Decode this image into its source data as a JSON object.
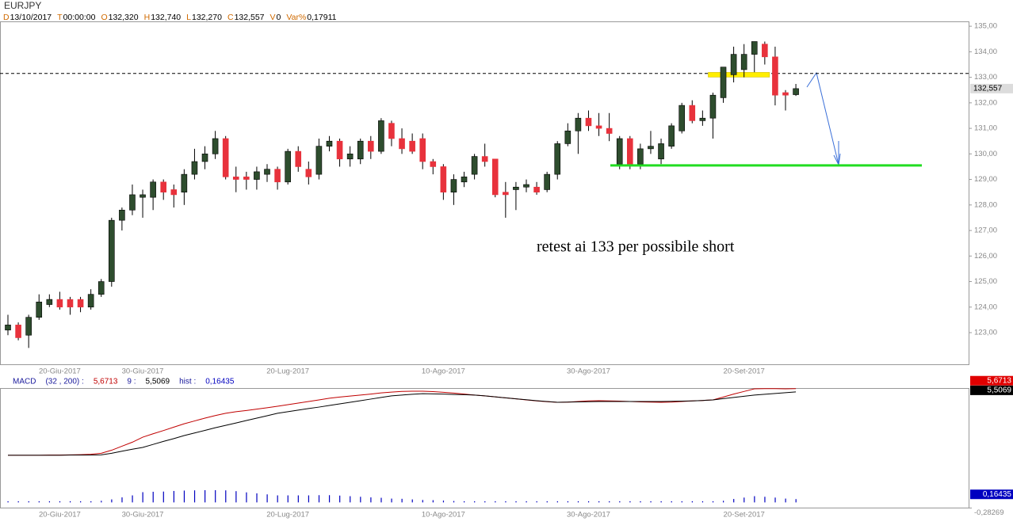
{
  "chart_data": [
    {
      "type": "candlestick",
      "title": "EURJPY",
      "info": [
        {
          "key": "D",
          "value": "13/10/2017"
        },
        {
          "key": "T",
          "value": "00:00:00"
        },
        {
          "key": "O",
          "value": "132,320"
        },
        {
          "key": "H",
          "value": "132,740"
        },
        {
          "key": "L",
          "value": "132,270"
        },
        {
          "key": "C",
          "value": "132,557"
        },
        {
          "key": "V",
          "value": "0"
        },
        {
          "key": "Var%",
          "value": "0,17911"
        }
      ],
      "categories": [
        null,
        null,
        null,
        null,
        null,
        "20-Giu-2017",
        null,
        null,
        null,
        null,
        null,
        null,
        null,
        "30-Giu-2017",
        null,
        null,
        null,
        null,
        null,
        null,
        null,
        null,
        null,
        null,
        null,
        null,
        null,
        "20-Lug-2017",
        null,
        null,
        null,
        null,
        null,
        null,
        null,
        null,
        null,
        null,
        null,
        null,
        null,
        null,
        "10-Ago-2017",
        null,
        null,
        null,
        null,
        null,
        null,
        null,
        null,
        null,
        null,
        null,
        null,
        null,
        "30-Ago-2017",
        null,
        null,
        null,
        null,
        null,
        null,
        null,
        null,
        null,
        null,
        null,
        null,
        null,
        null,
        "20-Set-2017",
        null,
        null,
        null,
        null,
        null
      ],
      "open": [
        123.1,
        123.3,
        122.9,
        123.6,
        124.1,
        124.3,
        124.3,
        124.3,
        124.0,
        124.5,
        125.0,
        127.4,
        127.8,
        128.3,
        128.3,
        128.9,
        128.6,
        128.5,
        129.2,
        129.7,
        130.0,
        130.6,
        129.1,
        129.1,
        129.0,
        129.2,
        129.4,
        128.9,
        130.1,
        129.4,
        129.2,
        130.3,
        130.5,
        129.8,
        129.8,
        130.5,
        130.1,
        131.2,
        130.6,
        130.5,
        130.6,
        129.7,
        129.5,
        128.5,
        128.9,
        129.2,
        129.9,
        129.8,
        128.5,
        128.6,
        128.7,
        128.7,
        128.6,
        129.2,
        130.4,
        130.9,
        131.4,
        131.1,
        131.0,
        129.6,
        130.6,
        129.6,
        130.2,
        129.8,
        130.3,
        130.9,
        131.9,
        131.3,
        131.4,
        132.2,
        133.1,
        133.3,
        133.9,
        134.3,
        133.8,
        132.4,
        132.32
      ],
      "high": [
        123.7,
        123.4,
        123.7,
        124.5,
        124.5,
        124.6,
        124.4,
        124.4,
        124.7,
        125.1,
        127.5,
        127.9,
        128.8,
        128.6,
        129.0,
        129.0,
        128.8,
        129.4,
        130.2,
        130.3,
        130.9,
        130.7,
        129.5,
        129.3,
        129.5,
        129.6,
        129.5,
        130.2,
        130.3,
        129.7,
        130.6,
        130.7,
        130.6,
        130.3,
        130.6,
        130.7,
        131.4,
        131.3,
        131.0,
        130.8,
        130.8,
        129.8,
        129.6,
        129.2,
        129.3,
        130.0,
        130.4,
        129.8,
        128.9,
        128.9,
        129.0,
        128.9,
        129.3,
        130.5,
        131.2,
        131.6,
        131.7,
        131.6,
        131.6,
        130.7,
        130.7,
        130.4,
        130.9,
        130.6,
        131.2,
        132.0,
        132.1,
        131.7,
        132.4,
        133.4,
        134.2,
        134.3,
        134.4,
        134.4,
        134.2,
        132.5,
        132.74
      ],
      "low": [
        122.9,
        122.7,
        122.4,
        123.5,
        124.0,
        123.9,
        123.7,
        123.8,
        123.9,
        124.4,
        124.8,
        127.0,
        127.6,
        127.5,
        127.8,
        128.2,
        127.9,
        128.0,
        129.0,
        129.4,
        129.8,
        129.0,
        128.5,
        128.6,
        128.6,
        128.9,
        128.6,
        128.8,
        129.3,
        128.8,
        129.0,
        130.1,
        129.5,
        129.5,
        129.6,
        129.8,
        130.0,
        130.3,
        130.0,
        130.0,
        129.4,
        129.2,
        128.2,
        128.0,
        128.7,
        129.0,
        129.5,
        128.3,
        127.5,
        127.8,
        128.5,
        128.4,
        128.5,
        129.0,
        130.3,
        130.0,
        130.9,
        130.7,
        130.5,
        129.4,
        129.4,
        129.4,
        130.0,
        129.6,
        130.2,
        130.8,
        131.2,
        131.1,
        130.6,
        132.0,
        132.8,
        133.0,
        133.2,
        133.5,
        131.9,
        131.7,
        132.27
      ],
      "close": [
        123.3,
        122.8,
        123.6,
        124.2,
        124.3,
        124.0,
        124.0,
        124.0,
        124.5,
        125.0,
        127.4,
        127.8,
        128.4,
        128.4,
        128.9,
        128.5,
        128.4,
        129.2,
        129.7,
        130.0,
        130.6,
        129.1,
        129.0,
        129.0,
        129.3,
        129.4,
        128.9,
        130.1,
        129.5,
        129.1,
        130.3,
        130.5,
        129.8,
        130.0,
        130.5,
        130.1,
        131.3,
        130.6,
        130.2,
        130.1,
        129.7,
        129.5,
        128.5,
        129.0,
        129.1,
        129.9,
        129.7,
        128.4,
        128.4,
        128.7,
        128.8,
        128.5,
        129.2,
        130.4,
        130.9,
        131.4,
        131.1,
        131.0,
        130.8,
        130.6,
        129.6,
        130.2,
        130.3,
        130.4,
        131.1,
        131.9,
        131.3,
        131.4,
        132.3,
        133.4,
        133.9,
        133.9,
        134.4,
        133.8,
        132.3,
        132.3,
        132.557
      ],
      "up_color": "#2e4d2e",
      "down_color": "#e8323c",
      "last_price": {
        "value": 132.557,
        "label": "132,557"
      },
      "ref_line": {
        "value": 133.15,
        "color": "#000000"
      },
      "support": {
        "value": 129.55,
        "color": "#22dd22"
      },
      "zone": {
        "value": 133.1,
        "color": "#ffee00"
      },
      "annotation": "retest ai 133 per possibile short",
      "ylim": [
        121.76,
        135.19
      ],
      "yticks": [
        {
          "value": 123,
          "label": "123,00"
        },
        {
          "value": 124,
          "label": "124,00"
        },
        {
          "value": 125,
          "label": "125,00"
        },
        {
          "value": 126,
          "label": "126,00"
        },
        {
          "value": 127,
          "label": "127,00"
        },
        {
          "value": 128,
          "label": "128,00"
        },
        {
          "value": 129,
          "label": "129,00"
        },
        {
          "value": 130,
          "label": "130,00"
        },
        {
          "value": 131,
          "label": "131,00"
        },
        {
          "value": 132,
          "label": "132,00"
        },
        {
          "value": 133,
          "label": "133,00"
        },
        {
          "value": 134,
          "label": "134,00"
        },
        {
          "value": 135,
          "label": "135,00"
        }
      ]
    },
    {
      "type": "macd",
      "name": "MACD",
      "params": "(32 , 200) :",
      "signal_period": "9 :",
      "hist_name": "hist :",
      "series": [
        {
          "color": "#c00000",
          "value_label": "5,6713",
          "values": [
            2.35,
            2.35,
            2.35,
            2.35,
            2.36,
            2.36,
            2.37,
            2.38,
            2.4,
            2.45,
            2.6,
            2.8,
            3.0,
            3.25,
            3.42,
            3.58,
            3.75,
            3.92,
            4.06,
            4.2,
            4.33,
            4.44,
            4.52,
            4.58,
            4.65,
            4.72,
            4.79,
            4.87,
            4.95,
            5.03,
            5.11,
            5.19,
            5.25,
            5.3,
            5.35,
            5.4,
            5.46,
            5.5,
            5.53,
            5.54,
            5.54,
            5.52,
            5.49,
            5.45,
            5.4,
            5.35,
            5.31,
            5.26,
            5.21,
            5.16,
            5.11,
            5.06,
            5.02,
            4.99,
            5.0,
            5.03,
            5.06,
            5.07,
            5.06,
            5.05,
            5.03,
            5.01,
            5.0,
            4.99,
            5.0,
            5.03,
            5.06,
            5.08,
            5.11,
            5.25,
            5.4,
            5.53,
            5.66,
            5.67,
            5.67,
            5.66,
            5.6713
          ]
        },
        {
          "color": "#000000",
          "value_label": "5,5069",
          "values": [
            2.35,
            2.35,
            2.35,
            2.35,
            2.35,
            2.35,
            2.36,
            2.36,
            2.36,
            2.37,
            2.45,
            2.55,
            2.65,
            2.74,
            2.89,
            3.04,
            3.18,
            3.33,
            3.46,
            3.59,
            3.72,
            3.84,
            3.96,
            4.08,
            4.2,
            4.32,
            4.44,
            4.52,
            4.6,
            4.68,
            4.75,
            4.83,
            4.91,
            4.99,
            5.07,
            5.15,
            5.23,
            5.31,
            5.35,
            5.39,
            5.42,
            5.41,
            5.4,
            5.38,
            5.37,
            5.35,
            5.31,
            5.26,
            5.21,
            5.16,
            5.12,
            5.07,
            5.03,
            4.99,
            5.0,
            5.01,
            5.02,
            5.03,
            5.03,
            5.03,
            5.03,
            5.03,
            5.03,
            5.03,
            5.04,
            5.05,
            5.06,
            5.08,
            5.11,
            5.17,
            5.23,
            5.29,
            5.35,
            5.39,
            5.43,
            5.47,
            5.5069
          ]
        }
      ],
      "hist": {
        "color": "#0000c0",
        "value_label": "0,16435",
        "values": [
          0,
          0,
          0,
          0,
          0.01,
          0.01,
          0.01,
          0.02,
          0.04,
          0.08,
          0.15,
          0.25,
          0.35,
          0.51,
          0.53,
          0.54,
          0.57,
          0.59,
          0.6,
          0.61,
          0.61,
          0.6,
          0.56,
          0.5,
          0.45,
          0.4,
          0.35,
          0.35,
          0.35,
          0.35,
          0.36,
          0.36,
          0.34,
          0.31,
          0.28,
          0.25,
          0.23,
          0.19,
          0.18,
          0.15,
          0.12,
          0.11,
          0.09,
          0.07,
          0.03,
          0,
          0,
          0,
          0,
          0,
          -0.01,
          -0.01,
          -0.01,
          0,
          0,
          0.02,
          0.04,
          0.04,
          0.03,
          0.02,
          0,
          -0.02,
          -0.03,
          -0.04,
          -0.04,
          -0.02,
          0,
          0,
          0,
          0.08,
          0.17,
          0.24,
          0.31,
          0.28,
          0.24,
          0.19,
          0.16435
        ]
      },
      "ylim": [
        -0.3,
        5.7
      ],
      "yticks": [
        {
          "value": -0.28269,
          "label": "-0,28269"
        }
      ]
    }
  ]
}
